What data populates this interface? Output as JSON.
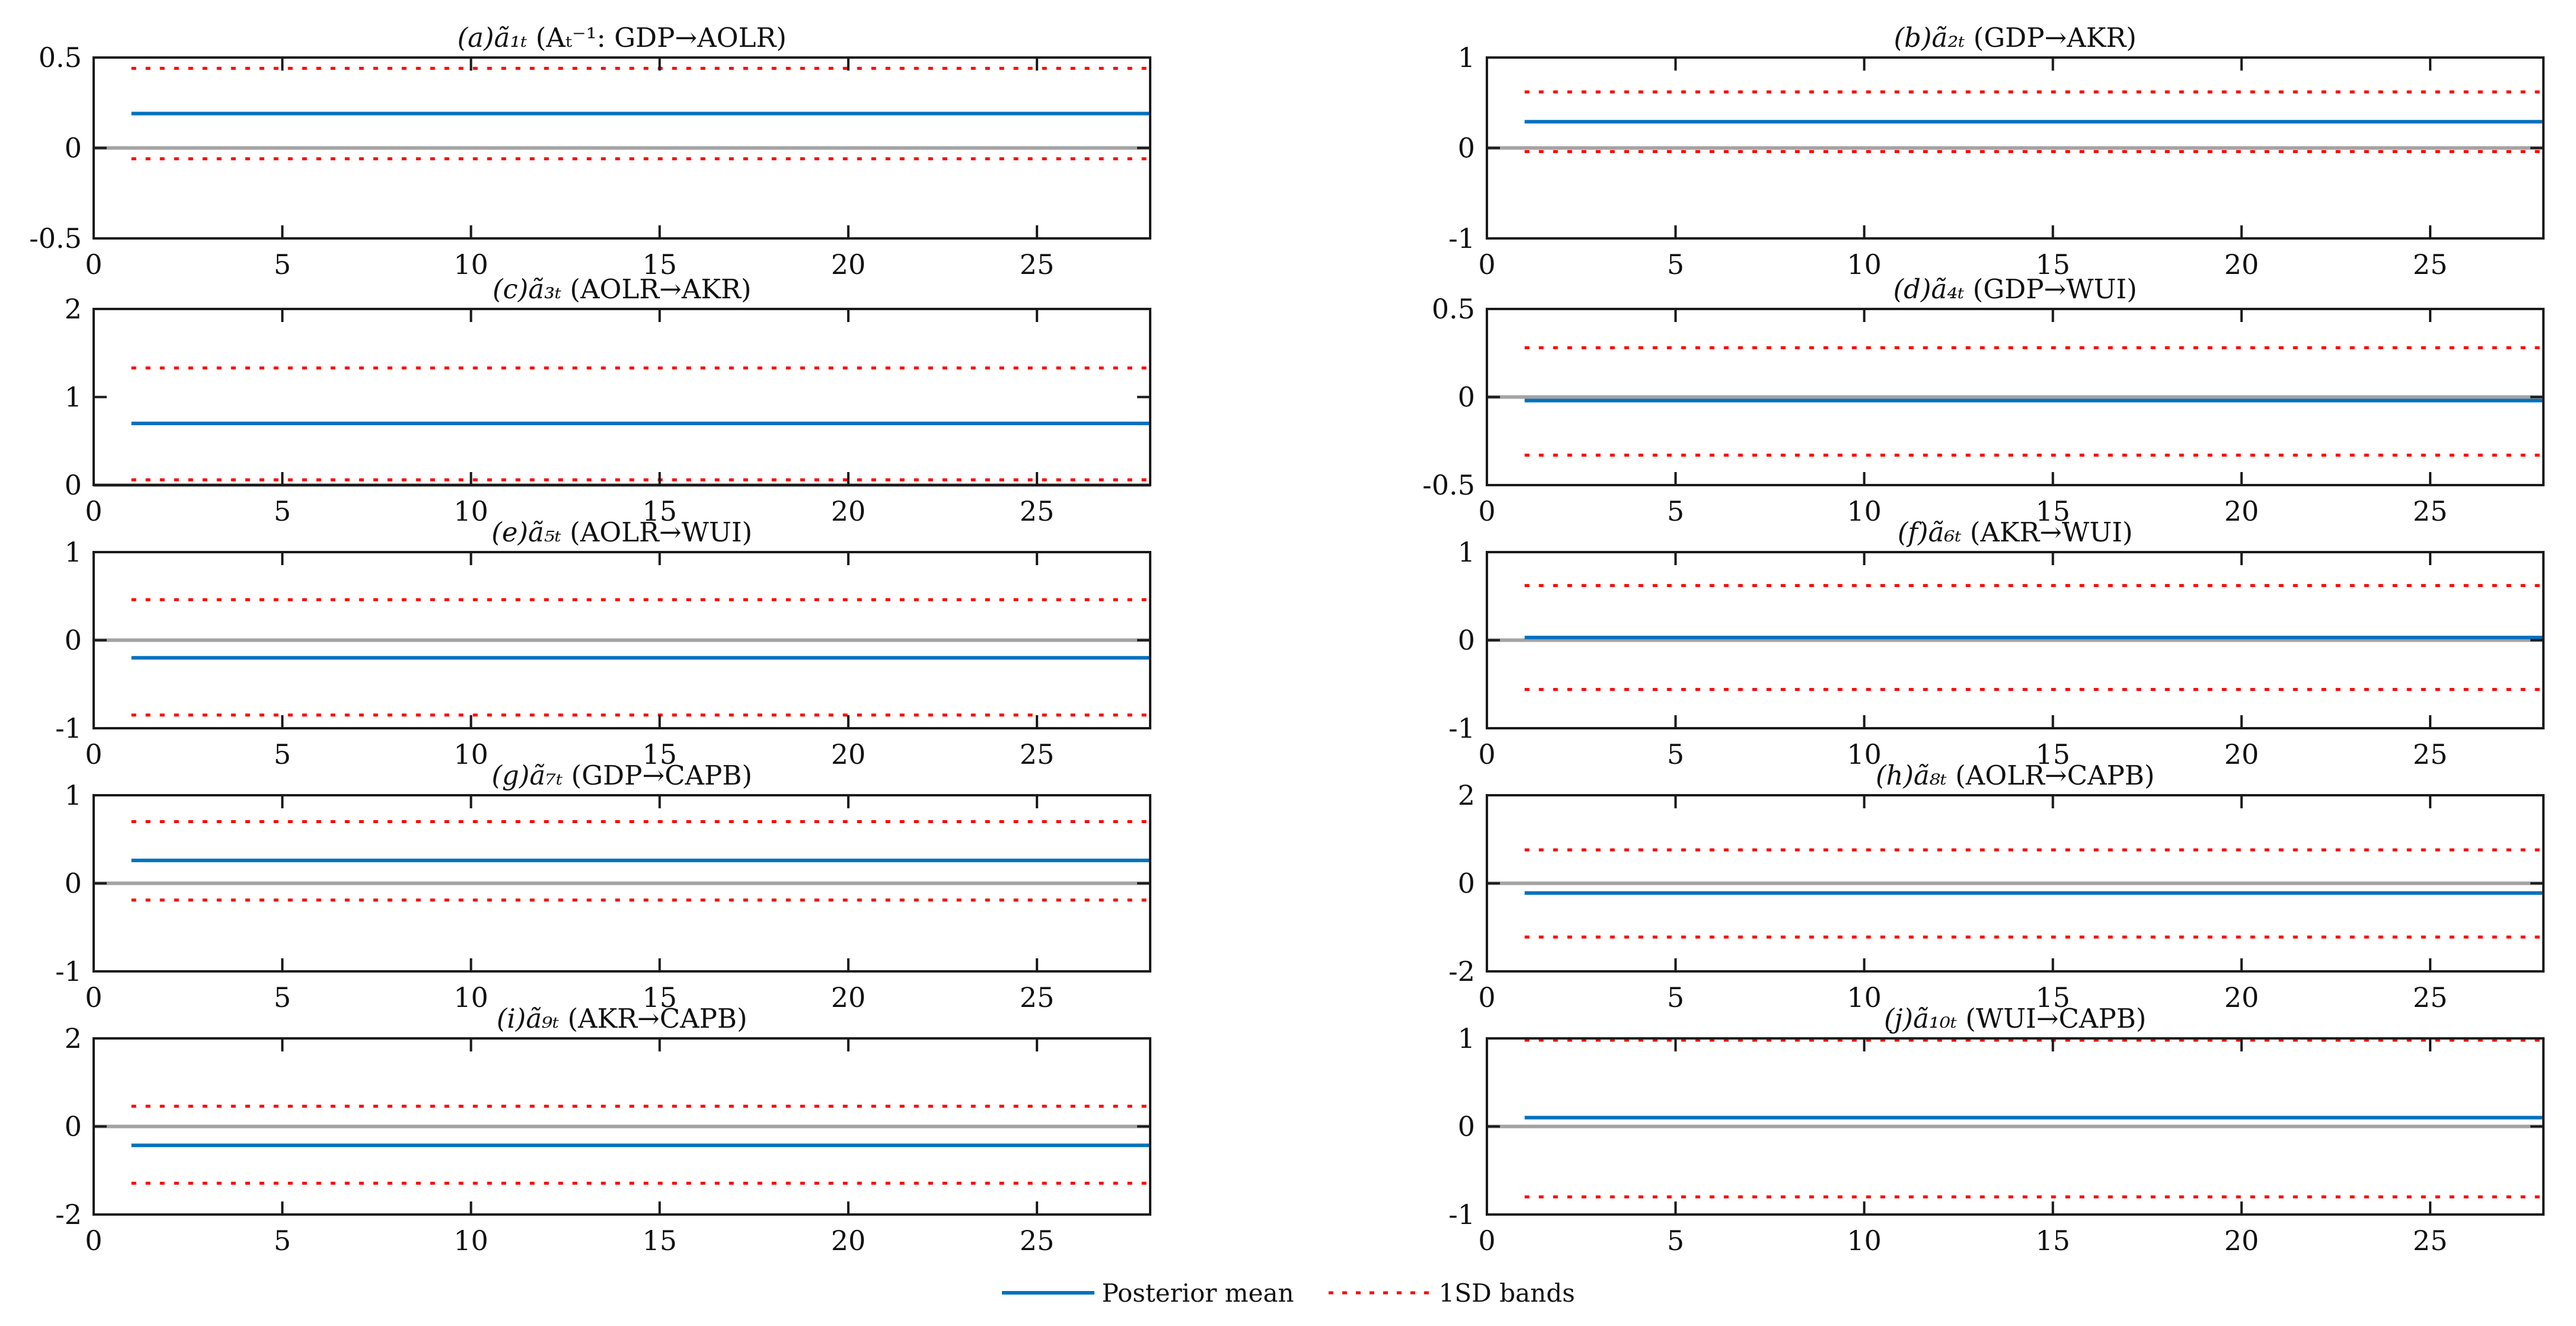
{
  "figure": {
    "background": "#ffffff"
  },
  "colors": {
    "posterior_mean": "#0072BD",
    "sd_bands": "#FF0000",
    "zero_line": "#A3A3A3",
    "axis": "#1A1A1A",
    "text": "#111111"
  },
  "legend": {
    "posterior_mean": "Posterior mean",
    "sd_bands": "1SD bands"
  },
  "chart_data": {
    "type": "line",
    "layout": "5x2 grid of subplots",
    "grid": false,
    "legend_position": "bottom-center",
    "legend_entries": [
      "Posterior mean",
      "1SD bands"
    ],
    "x": {
      "lim": [
        0,
        28
      ],
      "ticks": [
        0,
        5,
        10,
        15,
        20,
        25
      ],
      "data_start": 1,
      "data_end": 28
    },
    "panels": [
      {
        "id": "a",
        "title_prefix": "(a)ã₁ₜ",
        "title_rest": " (Aₜ⁻¹: GDP→AOLR)",
        "ylim": [
          -0.5,
          0.5
        ],
        "yticks": [
          0.5,
          0,
          -0.5
        ],
        "posterior_mean": 0.19,
        "upper_band": 0.44,
        "lower_band": -0.06
      },
      {
        "id": "b",
        "title_prefix": "(b)ã₂ₜ",
        "title_rest": " (GDP→AKR)",
        "ylim": [
          -1,
          1
        ],
        "yticks": [
          1,
          0,
          -1
        ],
        "posterior_mean": 0.29,
        "upper_band": 0.62,
        "lower_band": -0.04
      },
      {
        "id": "c",
        "title_prefix": "(c)ã₃ₜ",
        "title_rest": " (AOLR→AKR)",
        "ylim": [
          0,
          2
        ],
        "yticks": [
          2,
          1,
          0
        ],
        "posterior_mean": 0.7,
        "upper_band": 1.33,
        "lower_band": 0.06
      },
      {
        "id": "d",
        "title_prefix": "(d)ã₄ₜ",
        "title_rest": " (GDP→WUI)",
        "ylim": [
          -0.5,
          0.5
        ],
        "yticks": [
          0.5,
          0,
          -0.5
        ],
        "posterior_mean": -0.02,
        "upper_band": 0.28,
        "lower_band": -0.33
      },
      {
        "id": "e",
        "title_prefix": "(e)ã₅ₜ",
        "title_rest": " (AOLR→WUI)",
        "ylim": [
          -1,
          1
        ],
        "yticks": [
          1,
          0,
          -1
        ],
        "posterior_mean": -0.2,
        "upper_band": 0.46,
        "lower_band": -0.85
      },
      {
        "id": "f",
        "title_prefix": "(f)ã₆ₜ",
        "title_rest": " (AKR→WUI)",
        "ylim": [
          -1,
          1
        ],
        "yticks": [
          1,
          0,
          -1
        ],
        "posterior_mean": 0.03,
        "upper_band": 0.62,
        "lower_band": -0.56
      },
      {
        "id": "g",
        "title_prefix": "(g)ã₇ₜ",
        "title_rest": " (GDP→CAPB)",
        "ylim": [
          -1,
          1
        ],
        "yticks": [
          1,
          0,
          -1
        ],
        "posterior_mean": 0.26,
        "upper_band": 0.7,
        "lower_band": -0.19
      },
      {
        "id": "h",
        "title_prefix": "(h)ã₈ₜ",
        "title_rest": " (AOLR→CAPB)",
        "ylim": [
          -2,
          2
        ],
        "yticks": [
          2,
          0,
          -2
        ],
        "posterior_mean": -0.22,
        "upper_band": 0.76,
        "lower_band": -1.22
      },
      {
        "id": "i",
        "title_prefix": "(i)ã₉ₜ",
        "title_rest": " (AKR→CAPB)",
        "ylim": [
          -2,
          2
        ],
        "yticks": [
          2,
          0,
          -2
        ],
        "posterior_mean": -0.43,
        "upper_band": 0.46,
        "lower_band": -1.29
      },
      {
        "id": "j",
        "title_prefix": "(j)ã₁₀ₜ",
        "title_rest": " (WUI→CAPB)",
        "ylim": [
          -1,
          1
        ],
        "yticks": [
          1,
          0,
          -1
        ],
        "posterior_mean": 0.1,
        "upper_band": 0.98,
        "lower_band": -0.8
      }
    ]
  }
}
